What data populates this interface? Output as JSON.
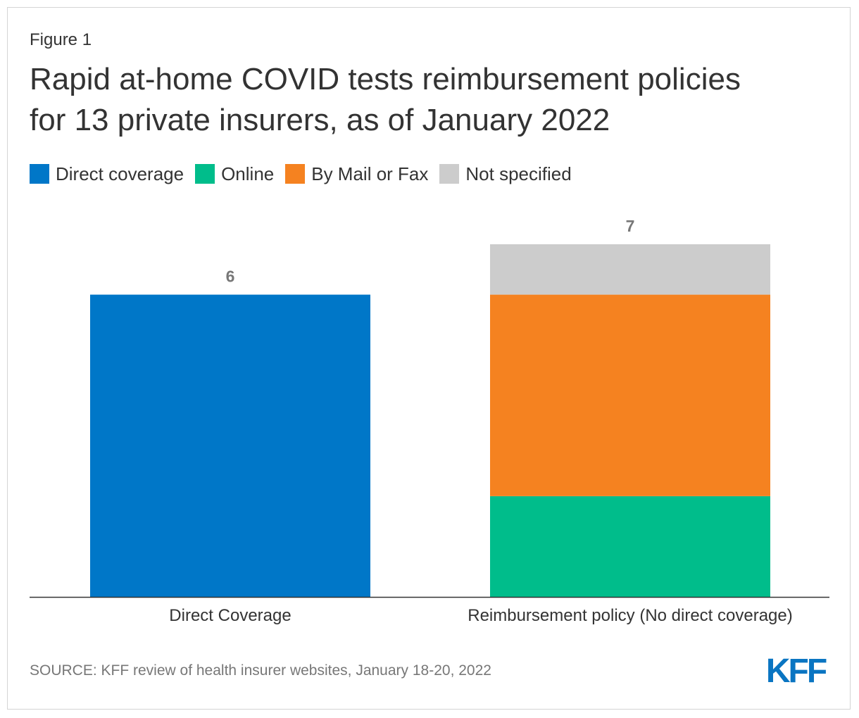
{
  "figure_label": "Figure 1",
  "title_line1": "Rapid at-home COVID tests reimbursement policies",
  "title_line2": "for 13 private insurers, as of January 2022",
  "source": "SOURCE: KFF review of health insurer websites, January 18-20, 2022",
  "logo_text": "KFF",
  "colors": {
    "direct": "#0077c8",
    "online": "#00bd8b",
    "mail_fax": "#f58220",
    "not_specified": "#cccccc",
    "logo": "#0a75c2"
  },
  "chart_data": {
    "type": "bar",
    "stacked": true,
    "categories": [
      "Direct Coverage",
      "Reimbursement policy (No direct coverage)"
    ],
    "series": [
      {
        "name": "Direct coverage",
        "values": [
          6,
          0
        ],
        "color": "#0077c8"
      },
      {
        "name": "Online",
        "values": [
          0,
          2
        ],
        "color": "#00bd8b"
      },
      {
        "name": "By Mail or Fax",
        "values": [
          0,
          4
        ],
        "color": "#f58220"
      },
      {
        "name": "Not specified",
        "values": [
          0,
          1
        ],
        "color": "#cccccc"
      }
    ],
    "totals": [
      "6",
      "7"
    ],
    "title": "Rapid at-home COVID tests reimbursement policies for 13 private insurers, as of January 2022",
    "xlabel": "",
    "ylabel": "",
    "ylim": [
      0,
      7
    ],
    "grid": false,
    "legend": "top-left"
  }
}
